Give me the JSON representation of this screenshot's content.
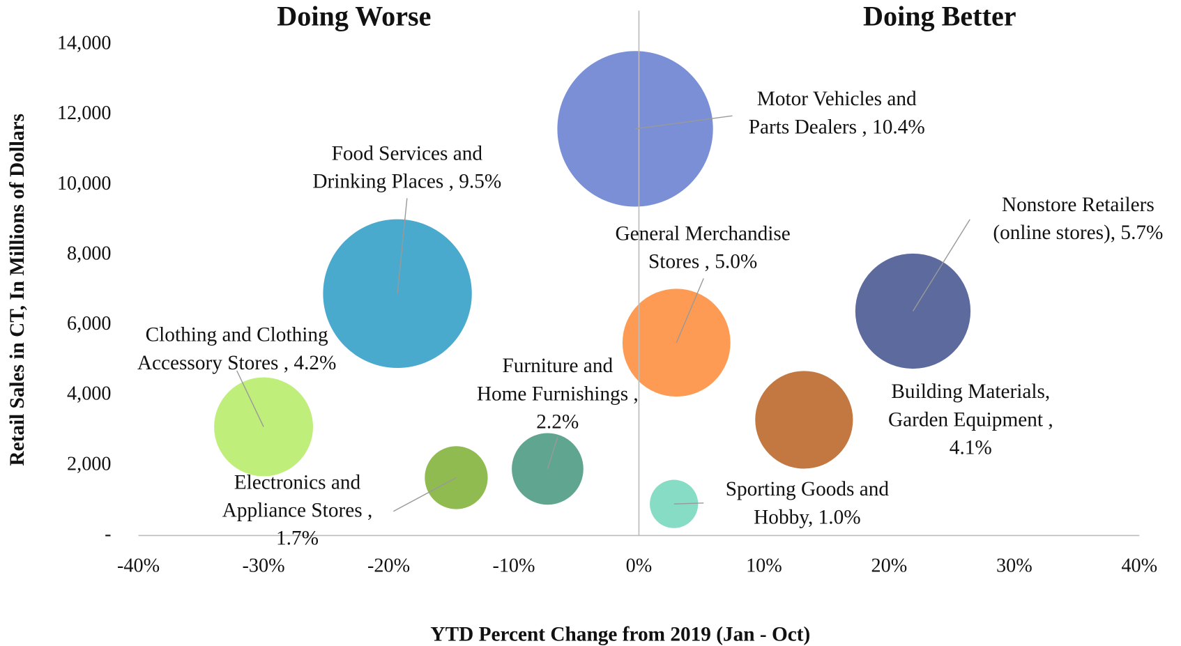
{
  "chart_data": {
    "type": "bubble",
    "annotations": [
      {
        "text": "Doing Worse",
        "color": "#ee1111"
      },
      {
        "text": "Doing Better",
        "color": "#2e7a58"
      }
    ],
    "x_label": "YTD Percent Change from 2019 (Jan - Oct)",
    "y_label": "Retail  Sales in CT, In Millions of Dollars",
    "xlim": [
      -40,
      40
    ],
    "xticks": [
      {
        "value": -40,
        "label": "-40%"
      },
      {
        "value": -30,
        "label": "-30%"
      },
      {
        "value": -20,
        "label": "-20%"
      },
      {
        "value": -10,
        "label": "-10%"
      },
      {
        "value": 0,
        "label": "0%"
      },
      {
        "value": 10,
        "label": "10%"
      },
      {
        "value": 20,
        "label": "20%"
      },
      {
        "value": 30,
        "label": "30%"
      },
      {
        "value": 40,
        "label": "40%"
      }
    ],
    "ylim": [
      0,
      14000
    ],
    "yticks": [
      {
        "value": 0,
        "label": "-"
      },
      {
        "value": 2000,
        "label": "2,000"
      },
      {
        "value": 4000,
        "label": "4,000"
      },
      {
        "value": 6000,
        "label": "6,000"
      },
      {
        "value": 8000,
        "label": "8,000"
      },
      {
        "value": 10000,
        "label": "10,000"
      },
      {
        "value": 12000,
        "label": "12,000"
      },
      {
        "value": 14000,
        "label": "14,000"
      }
    ],
    "series": [
      {
        "label": [
          "Motor Vehicles and",
          "Parts Dealers , 10.4%"
        ],
        "color": "#7b8fd6",
        "x": -0.3,
        "y": 11600,
        "size": 10.4
      },
      {
        "label": [
          "Food Services and",
          "Drinking Places , 9.5%"
        ],
        "color": "#4aaacd",
        "x": -19.3,
        "y": 6900,
        "size": 9.5
      },
      {
        "label": [
          "General Merchandise",
          "Stores , 5.0%"
        ],
        "color": "#fd9b55",
        "x": 3.0,
        "y": 5500,
        "size": 5.0
      },
      {
        "label": [
          "Nonstore Retailers",
          "(online stores), 5.7%"
        ],
        "color": "#5d6a9e",
        "x": 21.9,
        "y": 6400,
        "size": 5.7
      },
      {
        "label": [
          "Building Materials,",
          "Garden Equipment ,",
          "4.1%"
        ],
        "color": "#c27840",
        "x": 13.2,
        "y": 3300,
        "size": 4.1
      },
      {
        "label": [
          "Clothing and Clothing",
          "Accessory Stores , 4.2%"
        ],
        "color": "#bfee7a",
        "x": -30.0,
        "y": 3100,
        "size": 4.2
      },
      {
        "label": [
          "Electronics and",
          "Appliance Stores ,",
          "1.7%"
        ],
        "color": "#8fbb50",
        "x": -14.6,
        "y": 1650,
        "size": 1.7
      },
      {
        "label": [
          "Furniture and",
          "Home Furnishings ,",
          "2.2%"
        ],
        "color": "#5fa58f",
        "x": -7.3,
        "y": 1900,
        "size": 2.2
      },
      {
        "label": [
          "Sporting Goods and",
          "Hobby, 1.0%"
        ],
        "color": "#86dcc4",
        "x": 2.8,
        "y": 900,
        "size": 1.0
      }
    ]
  }
}
